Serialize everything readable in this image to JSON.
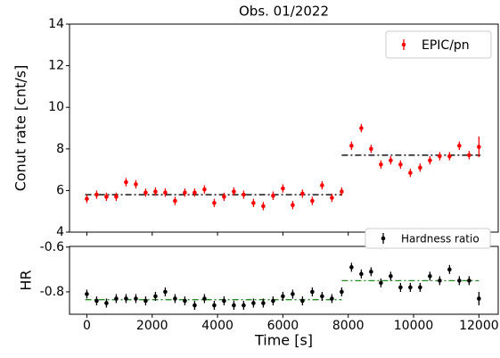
{
  "chart_data": [
    {
      "type": "errorbar",
      "title": "Obs. 01/2022",
      "ylabel": "Conut rate [cnt/s]",
      "x": [
        0,
        300,
        600,
        900,
        1200,
        1500,
        1800,
        2100,
        2400,
        2700,
        3000,
        3300,
        3600,
        3900,
        4200,
        4500,
        4800,
        5100,
        5400,
        5700,
        6000,
        6300,
        6600,
        6900,
        7200,
        7500,
        7800,
        8100,
        8400,
        8700,
        9000,
        9300,
        9600,
        9900,
        10200,
        10500,
        10800,
        11100,
        11400,
        11700,
        12000
      ],
      "series": [
        {
          "name": "EPIC/pn",
          "color": "#ff0000",
          "values": [
            5.6,
            5.8,
            5.7,
            5.7,
            6.4,
            6.3,
            5.9,
            5.95,
            5.9,
            5.5,
            5.9,
            5.9,
            6.05,
            5.4,
            5.7,
            5.95,
            5.8,
            5.4,
            5.25,
            5.75,
            6.1,
            5.3,
            5.85,
            5.5,
            6.25,
            5.65,
            5.95,
            8.15,
            9.0,
            8.0,
            7.25,
            7.45,
            7.25,
            6.85,
            7.1,
            7.45,
            7.65,
            7.65,
            8.15,
            7.7,
            8.1
          ],
          "errors": [
            0.2,
            0.2,
            0.2,
            0.2,
            0.2,
            0.2,
            0.2,
            0.2,
            0.2,
            0.2,
            0.2,
            0.2,
            0.2,
            0.2,
            0.2,
            0.2,
            0.2,
            0.2,
            0.2,
            0.2,
            0.2,
            0.2,
            0.2,
            0.2,
            0.2,
            0.2,
            0.2,
            0.2,
            0.2,
            0.2,
            0.2,
            0.2,
            0.2,
            0.2,
            0.2,
            0.2,
            0.2,
            0.2,
            0.2,
            0.2,
            0.5
          ]
        }
      ],
      "fits": [
        {
          "color": "#000000",
          "x": [
            -50,
            7800
          ],
          "values": [
            5.8,
            5.8
          ]
        },
        {
          "color": "#000000",
          "x": [
            7800,
            12050
          ],
          "values": [
            7.7,
            7.7
          ]
        }
      ],
      "xlim": [
        -530,
        12590
      ],
      "xticks": [
        0,
        2000,
        4000,
        6000,
        8000,
        10000,
        12000
      ],
      "ylim": [
        4,
        14
      ],
      "yticks": [
        4,
        6,
        8,
        10,
        12,
        14
      ],
      "legend": "upper right"
    },
    {
      "type": "errorbar",
      "xlabel": "Time [s]",
      "ylabel": "HR",
      "x": [
        0,
        300,
        600,
        900,
        1200,
        1500,
        1800,
        2100,
        2400,
        2700,
        3000,
        3300,
        3600,
        3900,
        4200,
        4500,
        4800,
        5100,
        5400,
        5700,
        6000,
        6300,
        6600,
        6900,
        7200,
        7500,
        7800,
        8100,
        8400,
        8700,
        9000,
        9300,
        9600,
        9900,
        10200,
        10500,
        10800,
        11100,
        11400,
        11700,
        12000
      ],
      "series": [
        {
          "name": "Hardness ratio",
          "color": "#000000",
          "values": [
            -0.81,
            -0.84,
            -0.85,
            -0.83,
            -0.83,
            -0.83,
            -0.84,
            -0.82,
            -0.8,
            -0.83,
            -0.84,
            -0.86,
            -0.83,
            -0.86,
            -0.84,
            -0.86,
            -0.86,
            -0.85,
            -0.85,
            -0.84,
            -0.82,
            -0.81,
            -0.84,
            -0.8,
            -0.82,
            -0.83,
            -0.8,
            -0.69,
            -0.72,
            -0.71,
            -0.76,
            -0.73,
            -0.78,
            -0.78,
            -0.78,
            -0.73,
            -0.75,
            -0.7,
            -0.75,
            -0.75,
            -0.83
          ],
          "errors": [
            0.02,
            0.02,
            0.02,
            0.02,
            0.02,
            0.02,
            0.02,
            0.02,
            0.02,
            0.02,
            0.02,
            0.02,
            0.02,
            0.02,
            0.02,
            0.02,
            0.02,
            0.02,
            0.02,
            0.02,
            0.02,
            0.02,
            0.02,
            0.02,
            0.02,
            0.02,
            0.02,
            0.02,
            0.02,
            0.02,
            0.02,
            0.02,
            0.02,
            0.02,
            0.02,
            0.02,
            0.02,
            0.02,
            0.02,
            0.02,
            0.03
          ]
        }
      ],
      "fits": [
        {
          "color": "#228b22",
          "x": [
            -50,
            7800
          ],
          "values": [
            -0.835,
            -0.835
          ]
        },
        {
          "color": "#228b22",
          "x": [
            7800,
            12000
          ],
          "values": [
            -0.75,
            -0.75
          ]
        }
      ],
      "xlim": [
        -530,
        12590
      ],
      "xticks": [
        0,
        2000,
        4000,
        6000,
        8000,
        10000,
        12000
      ],
      "ylim": [
        -0.9,
        -0.597
      ],
      "yticks": [
        -0.6,
        -0.8
      ],
      "legend": "upper right"
    }
  ]
}
